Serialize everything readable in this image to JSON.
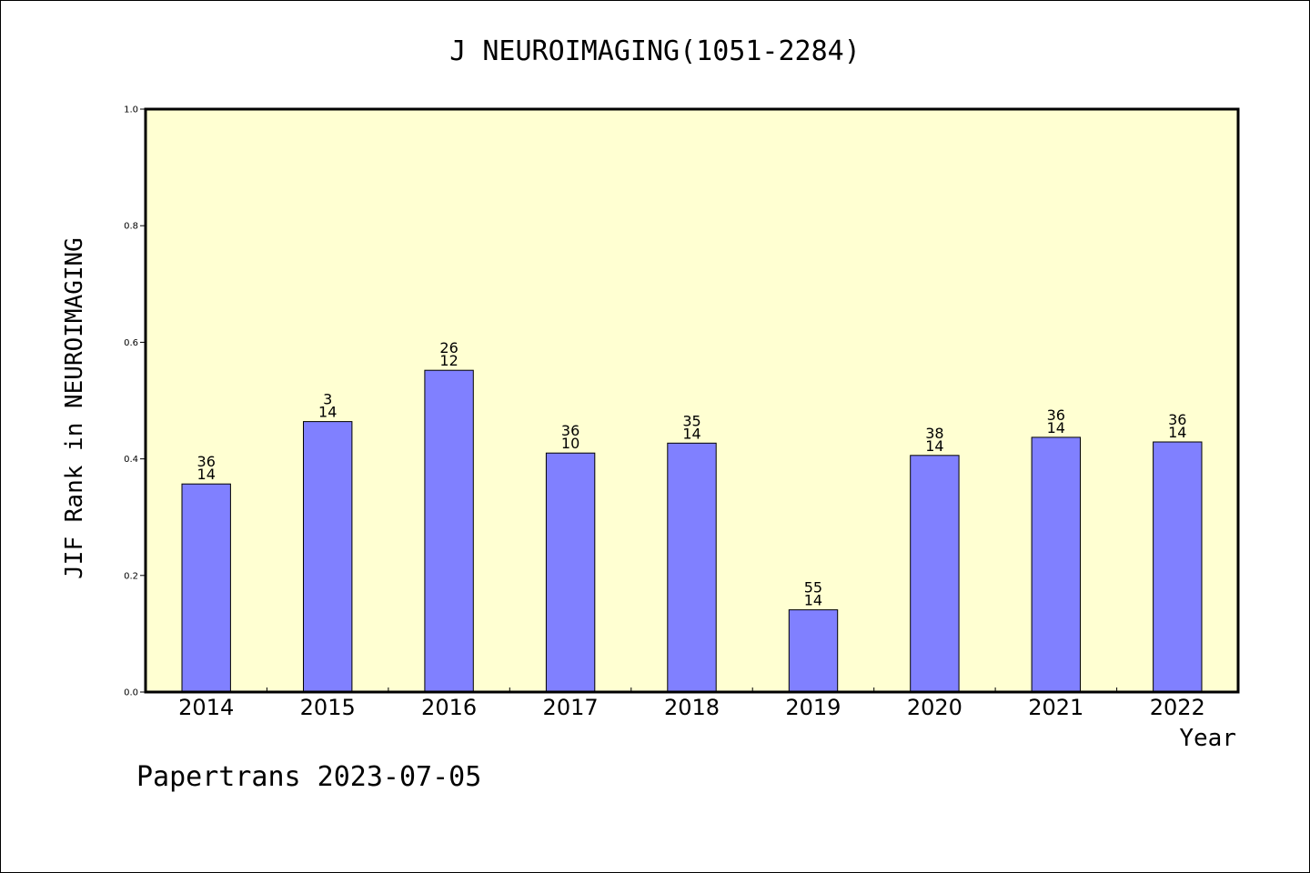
{
  "chart_data": {
    "type": "bar",
    "title": "J NEUROIMAGING(1051-2284)",
    "xlabel": "Year",
    "ylabel": "JIF Rank in NEUROIMAGING",
    "ylim": [
      0,
      1.0
    ],
    "yticks": [
      "0.0",
      "0.2",
      "0.4",
      "0.6",
      "0.8",
      "1.0"
    ],
    "grid": false,
    "colors": {
      "plot_background": "#ffffd2",
      "bar_fill": "#8080ff",
      "bar_stroke": "#000000"
    },
    "categories": [
      "2014",
      "2015",
      "2016",
      "2017",
      "2018",
      "2019",
      "2020",
      "2021",
      "2022"
    ],
    "values": [
      0.357,
      0.464,
      0.552,
      0.41,
      0.427,
      0.141,
      0.406,
      0.437,
      0.429
    ],
    "bar_labels": [
      [
        "36",
        "14"
      ],
      [
        "3",
        "14"
      ],
      [
        "26",
        "12"
      ],
      [
        "36",
        "10"
      ],
      [
        "35",
        "14"
      ],
      [
        "55",
        "14"
      ],
      [
        "38",
        "14"
      ],
      [
        "36",
        "14"
      ],
      [
        "36",
        "14"
      ]
    ]
  },
  "footer": {
    "text": "Papertrans 2023-07-05"
  }
}
